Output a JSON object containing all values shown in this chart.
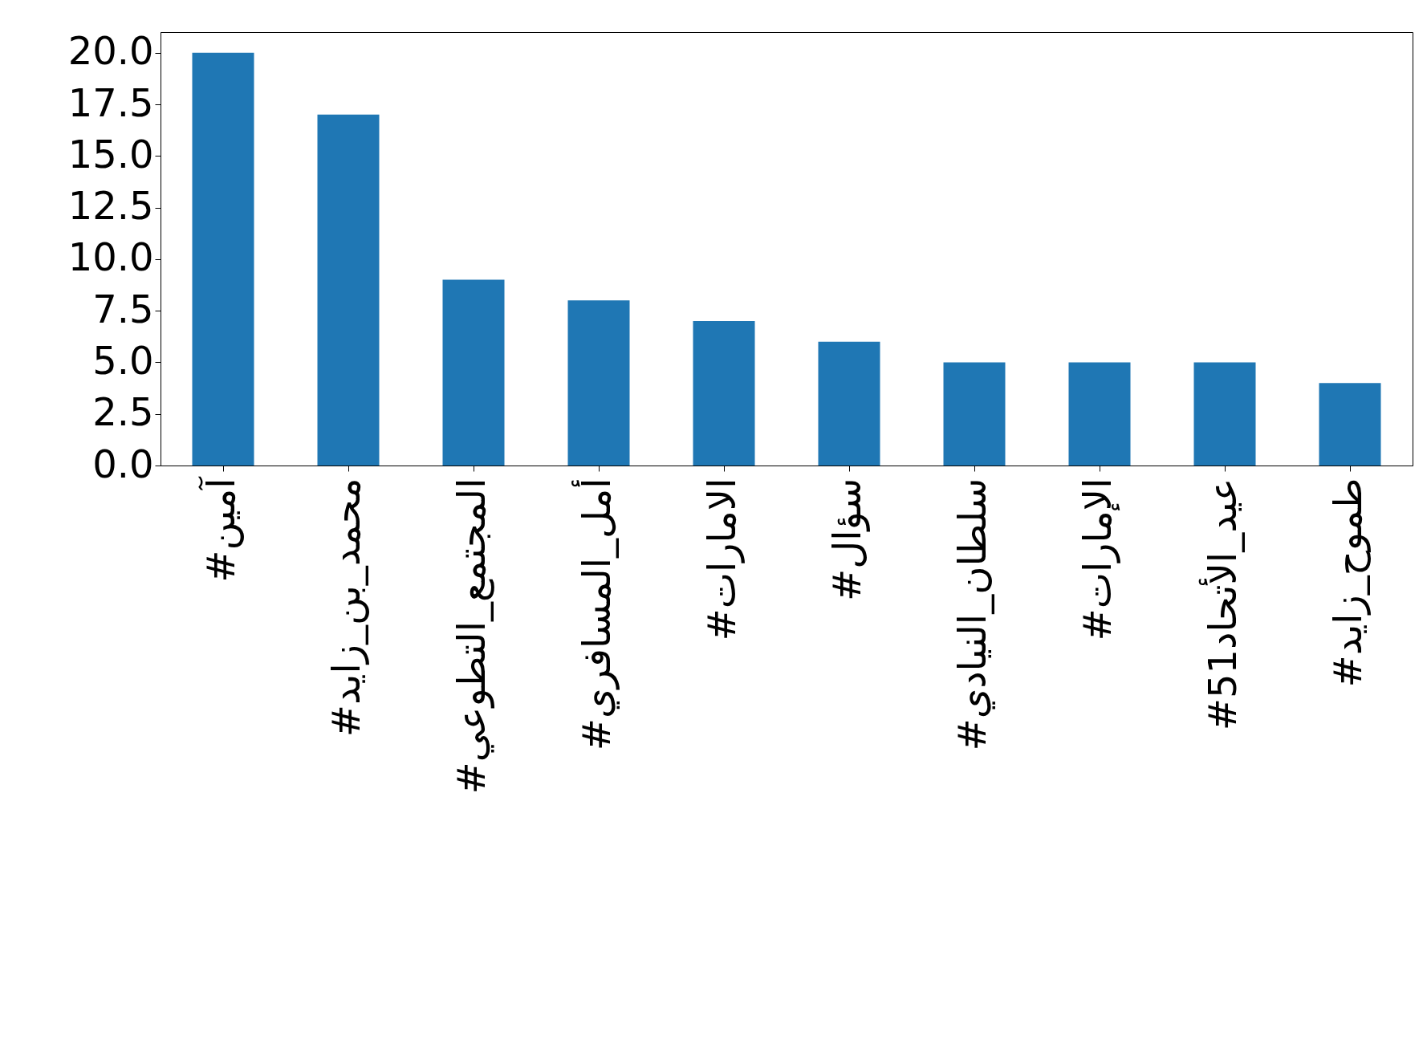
{
  "chart_data": {
    "type": "bar",
    "categories": [
      "#آمين",
      "#محمد_بن_زايد",
      "#المجتمع_التطوعي",
      "#أمل_المسافري",
      "#الامارات",
      "#سؤال",
      "#سلطان_النيادي",
      "#الإمارات",
      "#عيد_الأتحاد51",
      "#طموح_زايد"
    ],
    "values": [
      20,
      17,
      9,
      8,
      7,
      6,
      5,
      5,
      5,
      4
    ],
    "color": "#1f77b4",
    "ylim": [
      0,
      21
    ],
    "yticks": [
      {
        "value": 0,
        "label": "0.0"
      },
      {
        "value": 2.5,
        "label": "2.5"
      },
      {
        "value": 5,
        "label": "5.0"
      },
      {
        "value": 7.5,
        "label": "7.5"
      },
      {
        "value": 10,
        "label": "10.0"
      },
      {
        "value": 12.5,
        "label": "12.5"
      },
      {
        "value": 15,
        "label": "15.0"
      },
      {
        "value": 17.5,
        "label": "17.5"
      },
      {
        "value": 20,
        "label": "20.0"
      }
    ],
    "grid": false
  }
}
